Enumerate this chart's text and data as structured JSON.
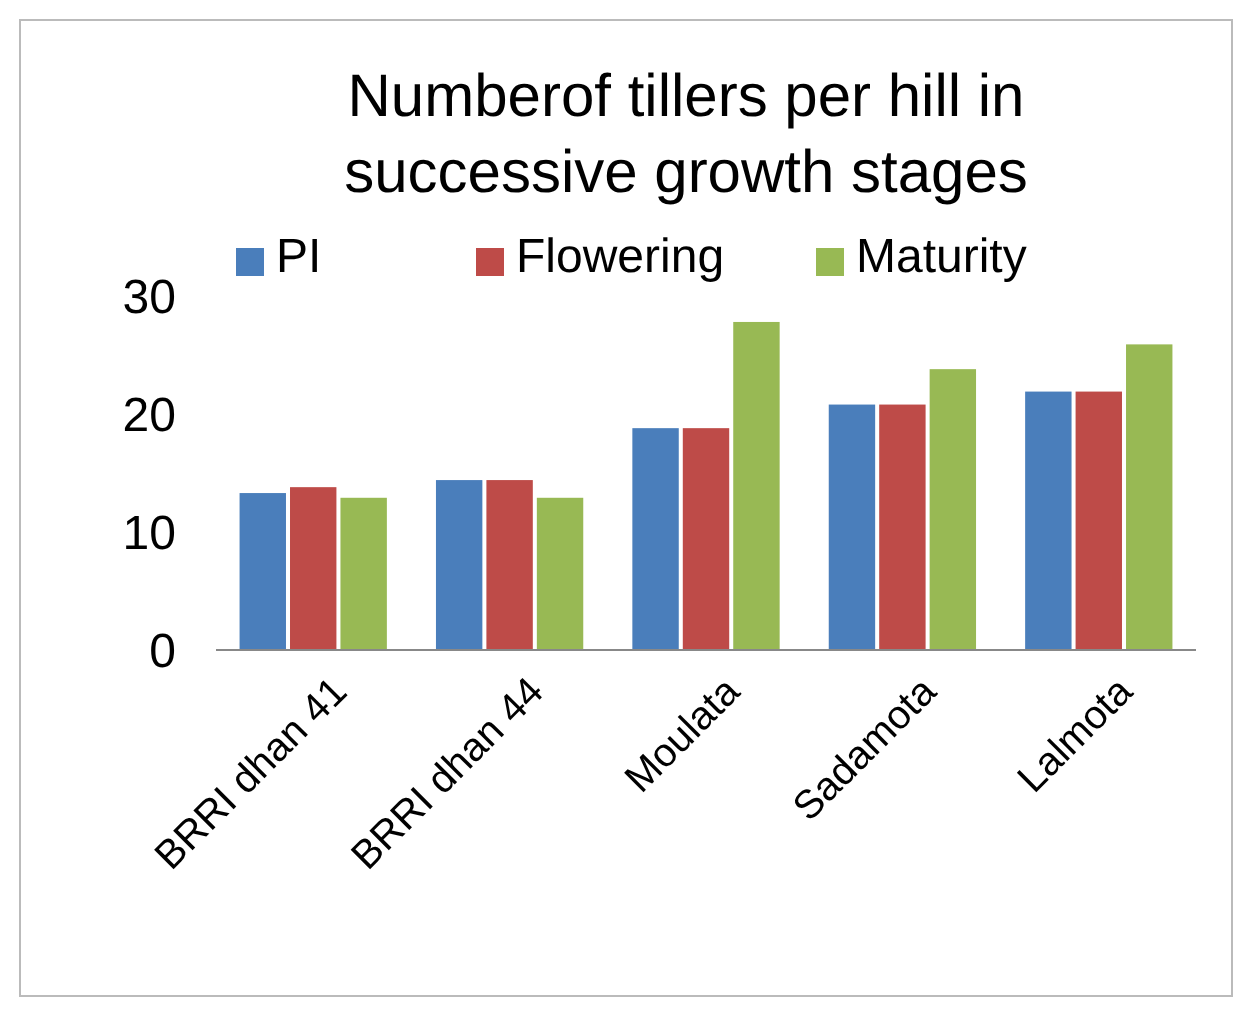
{
  "chart_data": {
    "type": "bar",
    "title": "Numberof tillers per hill in successive growth stages",
    "categories": [
      "BRRI dhan 41",
      "BRRI dhan 44",
      "Moulata",
      "Sadamota",
      "Lalmota"
    ],
    "series": [
      {
        "name": "PI",
        "color": "#4a7ebb",
        "values": [
          13.3,
          14.4,
          18.8,
          20.8,
          21.9
        ]
      },
      {
        "name": "Flowering",
        "color": "#be4b48",
        "values": [
          13.8,
          14.4,
          18.8,
          20.8,
          21.9
        ]
      },
      {
        "name": "Maturity",
        "color": "#98b954",
        "values": [
          12.9,
          12.9,
          27.8,
          23.8,
          25.9
        ]
      }
    ],
    "ylim": [
      0,
      30
    ],
    "yticks": [
      0,
      10,
      20,
      30
    ],
    "grid": false,
    "legend": "top"
  }
}
